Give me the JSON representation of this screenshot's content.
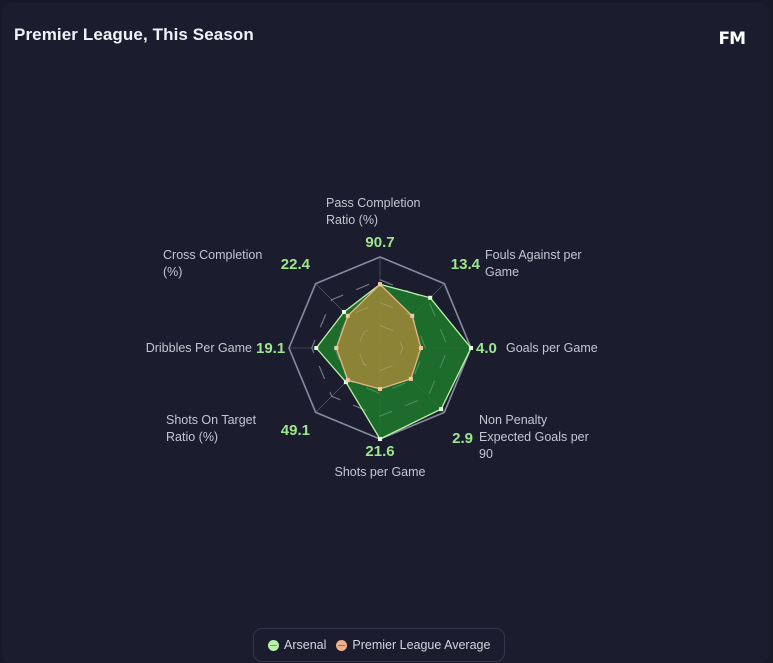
{
  "header": {
    "title": "Premier League, This Season",
    "brand": "FM"
  },
  "colors": {
    "team": "#1f7a2a",
    "team_stroke": "#b8f2a8",
    "average": "#a88a3a",
    "average_stroke": "#e8b587",
    "grid": "#8e90a6",
    "value_text": "#9ee68f"
  },
  "chart_data": {
    "type": "radar",
    "title": "Premier League, This Season",
    "axes": [
      {
        "label_lines": [
          "Pass Completion",
          "Ratio (%)"
        ],
        "value": "90.7"
      },
      {
        "label_lines": [
          "Fouls Against per",
          "Game"
        ],
        "value": "13.4"
      },
      {
        "label_lines": [
          "Goals per Game"
        ],
        "value": "4.0"
      },
      {
        "label_lines": [
          "Non Penalty",
          "Expected Goals per",
          "90"
        ],
        "value": "2.9"
      },
      {
        "label_lines": [
          "Shots per Game"
        ],
        "value": "21.6"
      },
      {
        "label_lines": [
          "Shots On Target",
          "Ratio (%)"
        ],
        "value": "49.1"
      },
      {
        "label_lines": [
          "Dribbles Per Game"
        ],
        "value": "19.1"
      },
      {
        "label_lines": [
          "Cross Completion",
          "(%)"
        ],
        "value": "22.4"
      }
    ],
    "rmax": 1,
    "rings": [
      0.25,
      0.5,
      0.75,
      1.0
    ],
    "series": [
      {
        "name": "Arsenal",
        "normalized": [
          0.7,
          0.78,
          1.0,
          0.95,
          1.0,
          0.53,
          0.7,
          0.56
        ]
      },
      {
        "name": "Premier League Average",
        "normalized": [
          0.7,
          0.5,
          0.45,
          0.48,
          0.45,
          0.5,
          0.48,
          0.5
        ]
      }
    ]
  },
  "legend": {
    "items": [
      {
        "label": "Arsenal",
        "color": "#b8f2a8"
      },
      {
        "label": "Premier League Average",
        "color": "#f0b088"
      }
    ]
  }
}
